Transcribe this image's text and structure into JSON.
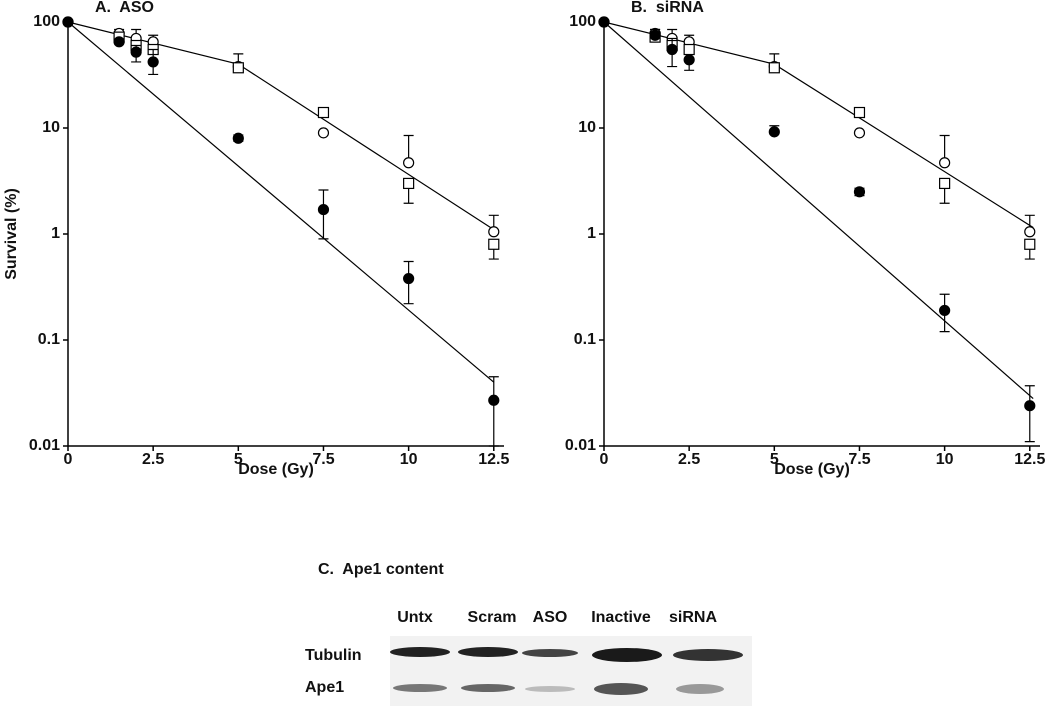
{
  "chart_data": [
    {
      "type": "scatter",
      "title": "A.  ASO",
      "xlabel": "Dose (Gy)",
      "ylabel": "Survival (%)",
      "log_y": true,
      "xlim": [
        0,
        12.8
      ],
      "ylim": [
        0.01,
        100
      ],
      "xticks": [
        0,
        2.5,
        5,
        7.5,
        10,
        12.5
      ],
      "yticks": [
        0.01,
        0.1,
        1,
        10,
        100
      ],
      "x": [
        0,
        1.5,
        2,
        2.5,
        5,
        7.5,
        10,
        12.5
      ],
      "series": [
        {
          "marker": "circle-open",
          "color": "#000000",
          "values": [
            100,
            78,
            70,
            65,
            38,
            9,
            4.7,
            1.05
          ],
          "upper": [
            null,
            85,
            85,
            75,
            50,
            null,
            8.5,
            1.5
          ],
          "lower": [
            null,
            null,
            null,
            null,
            null,
            null,
            null,
            null
          ]
        },
        {
          "marker": "square-open",
          "color": "#000000",
          "values": [
            null,
            72,
            60,
            55,
            37,
            14,
            3,
            0.8
          ],
          "upper": [
            null,
            null,
            null,
            null,
            null,
            null,
            null,
            null
          ],
          "lower": [
            null,
            null,
            null,
            null,
            null,
            null,
            1.95,
            0.58
          ]
        },
        {
          "marker": "circle-filled",
          "color": "#000000",
          "values": [
            100,
            65,
            52,
            42,
            8,
            1.7,
            0.38,
            0.027
          ],
          "upper": [
            null,
            null,
            60,
            55,
            8.6,
            2.6,
            0.55,
            0.045
          ],
          "lower": [
            null,
            null,
            42,
            32,
            7.5,
            0.9,
            0.22,
            0.01
          ]
        }
      ],
      "fits": [
        {
          "x": [
            0,
            5,
            12.5
          ],
          "values": [
            100,
            40,
            1.1
          ]
        },
        {
          "x": [
            0,
            12.5
          ],
          "values": [
            100,
            0.04
          ]
        }
      ]
    },
    {
      "type": "scatter",
      "title": "B.  siRNA",
      "xlabel": "Dose (Gy)",
      "ylabel": null,
      "log_y": true,
      "xlim": [
        0,
        12.8
      ],
      "ylim": [
        0.01,
        100
      ],
      "xticks": [
        0,
        2.5,
        5,
        7.5,
        10,
        12.5
      ],
      "yticks": [
        0.01,
        0.1,
        1,
        10,
        100
      ],
      "x": [
        0,
        1.5,
        2,
        2.5,
        5,
        7.5,
        10,
        12.5
      ],
      "series": [
        {
          "marker": "circle-open",
          "color": "#000000",
          "values": [
            100,
            78,
            70,
            65,
            38,
            9,
            4.7,
            1.05
          ],
          "upper": [
            null,
            85,
            85,
            75,
            50,
            null,
            8.5,
            1.5
          ],
          "lower": [
            null,
            null,
            null,
            null,
            null,
            null,
            null,
            null
          ]
        },
        {
          "marker": "square-open",
          "color": "#000000",
          "values": [
            null,
            72,
            60,
            55,
            37,
            14,
            3,
            0.8
          ],
          "upper": [
            null,
            null,
            null,
            null,
            null,
            null,
            null,
            null
          ],
          "lower": [
            null,
            null,
            null,
            null,
            null,
            null,
            1.95,
            0.58
          ]
        },
        {
          "marker": "circle-filled",
          "color": "#000000",
          "values": [
            100,
            75,
            55,
            44,
            9.2,
            2.5,
            0.19,
            0.024
          ],
          "upper": [
            null,
            85,
            70,
            null,
            10.5,
            2.7,
            0.27,
            0.037
          ],
          "lower": [
            null,
            null,
            38,
            35,
            null,
            2.3,
            0.12,
            0.011
          ]
        }
      ],
      "fits": [
        {
          "x": [
            0,
            5,
            12.6
          ],
          "values": [
            100,
            40,
            1.15
          ]
        },
        {
          "x": [
            0,
            12.6
          ],
          "values": [
            100,
            0.028
          ]
        }
      ]
    }
  ],
  "blot": {
    "title": "C.  Ape1 content",
    "lanes": [
      "Untx",
      "Scram",
      "ASO",
      "Inactive",
      "siRNA"
    ],
    "rows": [
      "Tubulin",
      "Ape1"
    ]
  }
}
